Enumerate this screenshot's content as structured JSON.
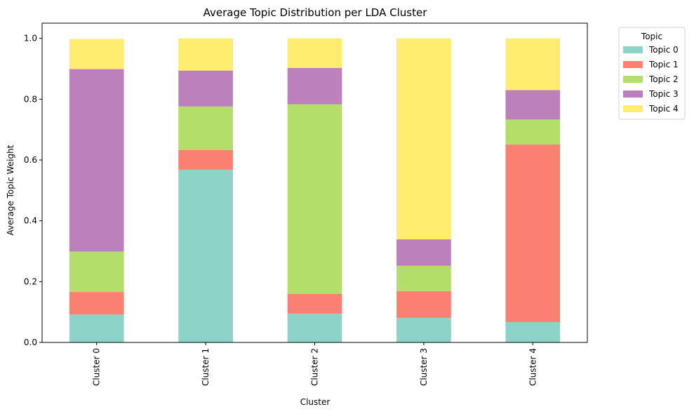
{
  "chart_data": {
    "type": "bar",
    "stacked": true,
    "title": "Average Topic Distribution per LDA Cluster",
    "xlabel": "Cluster",
    "ylabel": "Average Topic Weight",
    "categories": [
      "Cluster 0",
      "Cluster 1",
      "Cluster 2",
      "Cluster 3",
      "Cluster 4"
    ],
    "ylim": [
      0,
      1.05
    ],
    "yticks": [
      "0.0",
      "0.2",
      "0.4",
      "0.6",
      "0.8",
      "1.0"
    ],
    "legend_title": "Topic",
    "legend_position": "outside upper right",
    "grid": false,
    "series": [
      {
        "name": "Topic 0",
        "color": "#8dd3c7",
        "values": [
          0.092,
          0.568,
          0.095,
          0.081,
          0.067
        ]
      },
      {
        "name": "Topic 1",
        "color": "#fb8072",
        "values": [
          0.074,
          0.065,
          0.065,
          0.088,
          0.584
        ]
      },
      {
        "name": "Topic 2",
        "color": "#b3de69",
        "values": [
          0.133,
          0.143,
          0.623,
          0.083,
          0.082
        ]
      },
      {
        "name": "Topic 3",
        "color": "#bc80bd",
        "values": [
          0.6,
          0.118,
          0.12,
          0.087,
          0.097
        ]
      },
      {
        "name": "Topic 4",
        "color": "#ffed6f",
        "values": [
          0.099,
          0.106,
          0.097,
          0.661,
          0.17
        ]
      }
    ]
  }
}
